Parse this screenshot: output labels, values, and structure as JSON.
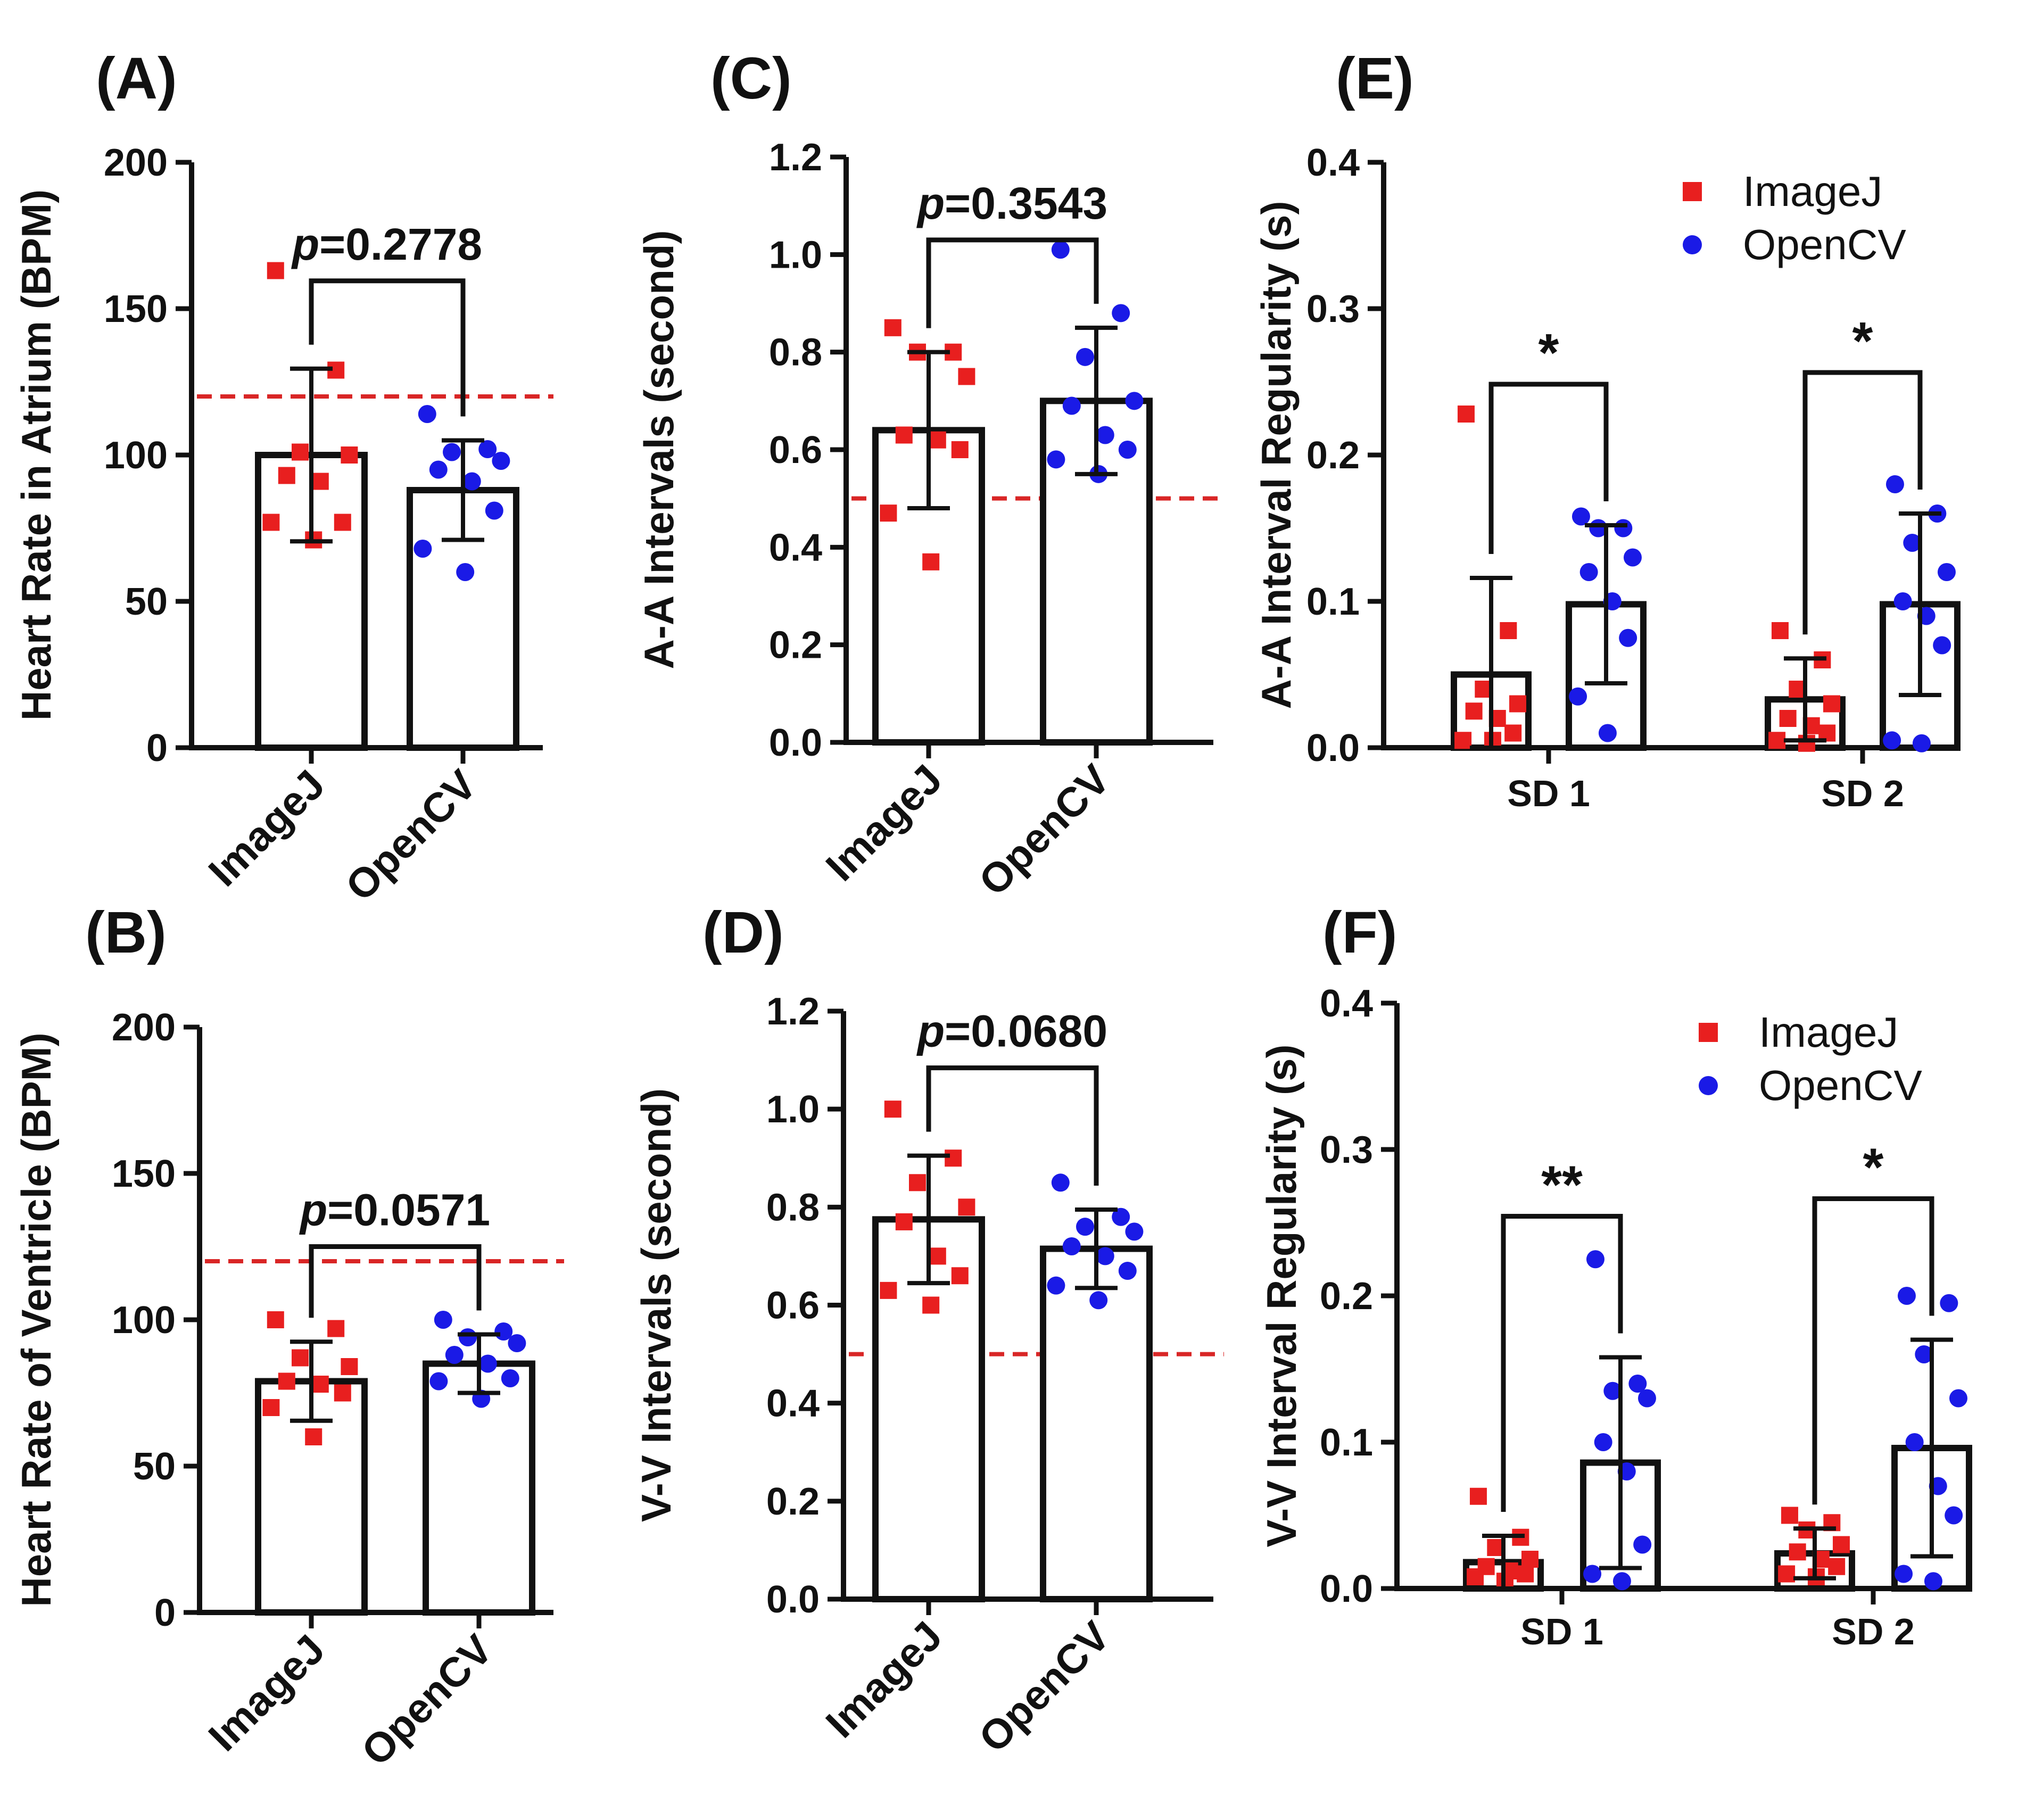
{
  "figure": {
    "colors": {
      "axis": "#111111",
      "imagej": "#e81f1f",
      "opencv": "#1a1ae6",
      "threshold": "#d92626",
      "bar_fill": "#ffffff"
    }
  },
  "chart_data": [
    {
      "id": "A",
      "panel_label": "(A)",
      "type": "bar",
      "ylabel": "Heart Rate in Atrium (BPM)",
      "ylim": [
        0,
        200
      ],
      "yticks": [
        "0",
        "50",
        "100",
        "150",
        "200"
      ],
      "categories": [
        "ImageJ",
        "OpenCV"
      ],
      "rotate_xticks": true,
      "threshold": 120,
      "series": [
        {
          "name": "ImageJ",
          "marker": "square",
          "mean": 100,
          "sd": 29.5,
          "points": [
            163,
            129,
            101,
            100,
            93,
            91,
            77,
            77,
            71
          ]
        },
        {
          "name": "OpenCV",
          "marker": "circle",
          "mean": 88,
          "sd": 17,
          "points": [
            114,
            102,
            101,
            98,
            95,
            91,
            81,
            68,
            60
          ]
        }
      ],
      "annotations": [
        {
          "text": "p=0.2778",
          "prefix": "p",
          "rest": "=0.2778",
          "pair": [
            0,
            1
          ]
        }
      ]
    },
    {
      "id": "B",
      "panel_label": "(B)",
      "type": "bar",
      "ylabel": "Heart Rate of Ventricle (BPM)",
      "ylim": [
        0,
        200
      ],
      "yticks": [
        "0",
        "50",
        "100",
        "150",
        "200"
      ],
      "categories": [
        "ImageJ",
        "OpenCV"
      ],
      "rotate_xticks": true,
      "threshold": 120,
      "series": [
        {
          "name": "ImageJ",
          "marker": "square",
          "mean": 79,
          "sd": 13.5,
          "points": [
            100,
            97,
            87,
            84,
            79,
            78,
            75,
            70,
            60
          ]
        },
        {
          "name": "OpenCV",
          "marker": "circle",
          "mean": 85,
          "sd": 10,
          "points": [
            100,
            96,
            94,
            92,
            88,
            85,
            80,
            79,
            73
          ]
        }
      ],
      "annotations": [
        {
          "text": "p=0.0571",
          "prefix": "p",
          "rest": "=0.0571",
          "pair": [
            0,
            1
          ]
        }
      ]
    },
    {
      "id": "C",
      "panel_label": "(C)",
      "type": "bar",
      "ylabel": "A-A Intervals (second)",
      "ylim": [
        0,
        1.2
      ],
      "yticks": [
        "0.0",
        "0.2",
        "0.4",
        "0.6",
        "0.8",
        "1.0",
        "1.2"
      ],
      "categories": [
        "ImageJ",
        "OpenCV"
      ],
      "rotate_xticks": true,
      "threshold": 0.5,
      "series": [
        {
          "name": "ImageJ",
          "marker": "square",
          "mean": 0.64,
          "sd": 0.16,
          "points": [
            0.85,
            0.8,
            0.8,
            0.75,
            0.63,
            0.62,
            0.6,
            0.47,
            0.37
          ]
        },
        {
          "name": "OpenCV",
          "marker": "circle",
          "mean": 0.7,
          "sd": 0.15,
          "points": [
            1.01,
            0.88,
            0.79,
            0.7,
            0.69,
            0.63,
            0.6,
            0.58,
            0.55
          ]
        }
      ],
      "annotations": [
        {
          "text": "p=0.3543",
          "prefix": "p",
          "rest": "=0.3543",
          "pair": [
            0,
            1
          ]
        }
      ]
    },
    {
      "id": "D",
      "panel_label": "(D)",
      "type": "bar",
      "ylabel": "V-V Intervals (second)",
      "ylim": [
        0,
        1.2
      ],
      "yticks": [
        "0.0",
        "0.2",
        "0.4",
        "0.6",
        "0.8",
        "1.0",
        "1.2"
      ],
      "categories": [
        "ImageJ",
        "OpenCV"
      ],
      "rotate_xticks": true,
      "threshold": 0.5,
      "series": [
        {
          "name": "ImageJ",
          "marker": "square",
          "mean": 0.775,
          "sd": 0.13,
          "points": [
            1.0,
            0.9,
            0.85,
            0.8,
            0.77,
            0.7,
            0.66,
            0.63,
            0.6
          ]
        },
        {
          "name": "OpenCV",
          "marker": "circle",
          "mean": 0.715,
          "sd": 0.08,
          "points": [
            0.85,
            0.78,
            0.76,
            0.75,
            0.72,
            0.7,
            0.67,
            0.64,
            0.61
          ]
        }
      ],
      "annotations": [
        {
          "text": "p=0.0680",
          "prefix": "p",
          "rest": "=0.0680",
          "pair": [
            0,
            1
          ]
        }
      ]
    },
    {
      "id": "E",
      "panel_label": "(E)",
      "type": "grouped-bar",
      "ylabel": "A-A Interval Regularity (s)",
      "ylim": [
        0,
        0.4
      ],
      "yticks": [
        "0.0",
        "0.1",
        "0.2",
        "0.3",
        "0.4"
      ],
      "categories": [
        "SD 1",
        "SD 2"
      ],
      "rotate_xticks": false,
      "legend": {
        "position": "top-right",
        "entries": [
          "ImageJ",
          "OpenCV"
        ]
      },
      "series": [
        {
          "name": "ImageJ",
          "marker": "square",
          "means": [
            0.05,
            0.033
          ],
          "sds": [
            0.066,
            0.028
          ],
          "points": [
            [
              0.228,
              0.08,
              0.04,
              0.03,
              0.025,
              0.02,
              0.01,
              0.005,
              0.005
            ],
            [
              0.08,
              0.06,
              0.04,
              0.03,
              0.02,
              0.015,
              0.01,
              0.005,
              0.003
            ]
          ]
        },
        {
          "name": "OpenCV",
          "marker": "circle",
          "means": [
            0.098,
            0.098
          ],
          "sds": [
            0.054,
            0.062
          ],
          "points": [
            [
              0.158,
              0.15,
              0.15,
              0.13,
              0.12,
              0.1,
              0.075,
              0.035,
              0.01
            ],
            [
              0.18,
              0.16,
              0.14,
              0.12,
              0.1,
              0.09,
              0.07,
              0.005,
              0.003
            ]
          ]
        }
      ],
      "annotations": [
        {
          "text": "*",
          "group": 0
        },
        {
          "text": "*",
          "group": 1
        }
      ]
    },
    {
      "id": "F",
      "panel_label": "(F)",
      "type": "grouped-bar",
      "ylabel": "V-V Interval Regularity (s)",
      "ylim": [
        0,
        0.4
      ],
      "yticks": [
        "0.0",
        "0.1",
        "0.2",
        "0.3",
        "0.4"
      ],
      "categories": [
        "SD 1",
        "SD 2"
      ],
      "rotate_xticks": false,
      "legend": {
        "position": "top-right",
        "entries": [
          "ImageJ",
          "OpenCV"
        ]
      },
      "series": [
        {
          "name": "ImageJ",
          "marker": "square",
          "means": [
            0.018,
            0.024
          ],
          "sds": [
            0.018,
            0.017
          ],
          "points": [
            [
              0.063,
              0.035,
              0.028,
              0.02,
              0.015,
              0.012,
              0.01,
              0.008,
              0.005
            ],
            [
              0.05,
              0.045,
              0.04,
              0.03,
              0.025,
              0.02,
              0.015,
              0.01,
              0.008
            ]
          ]
        },
        {
          "name": "OpenCV",
          "marker": "circle",
          "means": [
            0.086,
            0.096
          ],
          "sds": [
            0.072,
            0.074
          ],
          "points": [
            [
              0.225,
              0.14,
              0.135,
              0.13,
              0.1,
              0.08,
              0.03,
              0.01,
              0.005
            ],
            [
              0.2,
              0.195,
              0.16,
              0.13,
              0.1,
              0.07,
              0.05,
              0.01,
              0.005
            ]
          ]
        }
      ],
      "annotations": [
        {
          "text": "**",
          "group": 0
        },
        {
          "text": "*",
          "group": 1
        }
      ]
    }
  ]
}
